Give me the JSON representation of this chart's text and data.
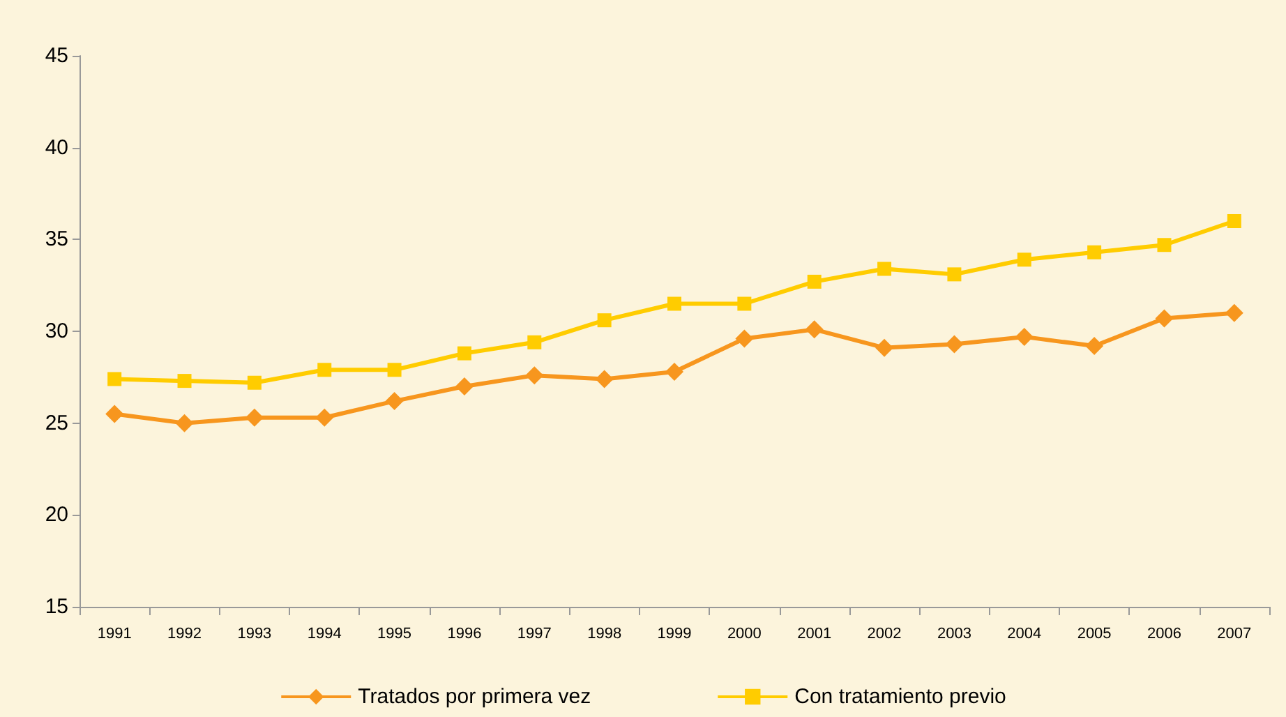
{
  "chart_data": {
    "type": "line",
    "categories": [
      "1991",
      "1992",
      "1993",
      "1994",
      "1995",
      "1996",
      "1997",
      "1998",
      "1999",
      "2000",
      "2001",
      "2002",
      "2003",
      "2004",
      "2005",
      "2006",
      "2007"
    ],
    "series": [
      {
        "name": "Tratados por primera vez",
        "color": "#f7961e",
        "marker": "diamond",
        "values": [
          25.5,
          25.0,
          25.3,
          25.3,
          26.2,
          27.0,
          27.6,
          27.4,
          27.8,
          29.6,
          30.1,
          29.1,
          29.3,
          29.7,
          29.2,
          30.7,
          31.0
        ]
      },
      {
        "name": "Con tratamiento previo",
        "color": "#ffcc00",
        "marker": "square",
        "values": [
          27.4,
          27.3,
          27.2,
          27.9,
          27.9,
          28.8,
          29.4,
          30.6,
          31.5,
          31.5,
          32.7,
          33.4,
          33.1,
          33.9,
          34.3,
          34.7,
          36.0
        ]
      }
    ],
    "ylim": [
      15,
      45
    ],
    "yticks": [
      15,
      20,
      25,
      30,
      35,
      40,
      45
    ],
    "grid": false,
    "legend": "bottom"
  }
}
